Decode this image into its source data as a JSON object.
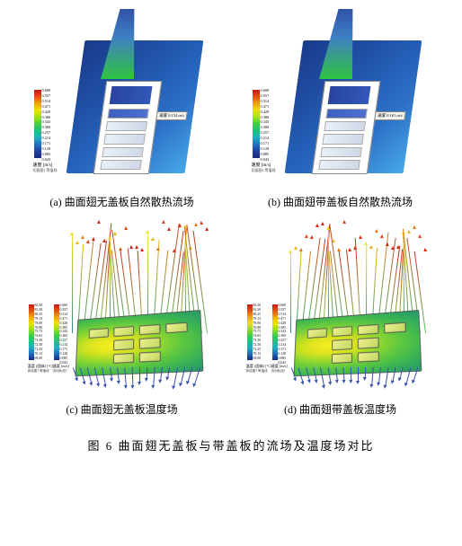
{
  "panels": {
    "a": {
      "caption": "(a)  曲面翅无盖板自然散热流场",
      "probe": "速度 0.154 m/s"
    },
    "b": {
      "caption": "(b)  曲面翅带盖板自然散热流场",
      "probe": "速度 0.161 m/s"
    },
    "c": {
      "caption": "(c)  曲面翅无盖板温度场"
    },
    "d": {
      "caption": "(d)  曲面翅带盖板温度场"
    }
  },
  "main_caption": "图 6  曲面翅无盖板与带盖板的流场及温度场对比",
  "velocity_bar": {
    "label": "速度 [m/s]",
    "sublabel": "切面图1 等值线",
    "ticks": [
      "0.600",
      "0.557",
      "0.514",
      "0.471",
      "0.429",
      "0.386",
      "0.343",
      "0.300",
      "0.257",
      "0.214",
      "0.171",
      "0.128",
      "0.085",
      "0.043"
    ]
  },
  "temp_bar": {
    "label": "温度 (固体) [°C]",
    "sublabel": "体绘图1 等值线",
    "ticks": [
      "82.50",
      "81.38",
      "80.25",
      "79.13",
      "78.00",
      "76.88",
      "75.75",
      "74.63",
      "73.50",
      "72.38",
      "71.25",
      "70.13",
      "69.00"
    ]
  },
  "velocity_bar2": {
    "label": "速度 [m/s]",
    "sublabel": "流动轨线1",
    "ticks": [
      "0.600",
      "0.557",
      "0.514",
      "0.471",
      "0.428",
      "0.385",
      "0.343",
      "0.300",
      "0.257",
      "0.214",
      "0.171",
      "0.128",
      "0.085",
      "0.043"
    ]
  },
  "colors": {
    "bg": "#ffffff",
    "blue_deep": "#1a3a8a",
    "blue_light": "#47a8e8",
    "hot": "#c81818",
    "cold": "#182880",
    "yellow": "#f4f020",
    "green": "#40c850"
  }
}
